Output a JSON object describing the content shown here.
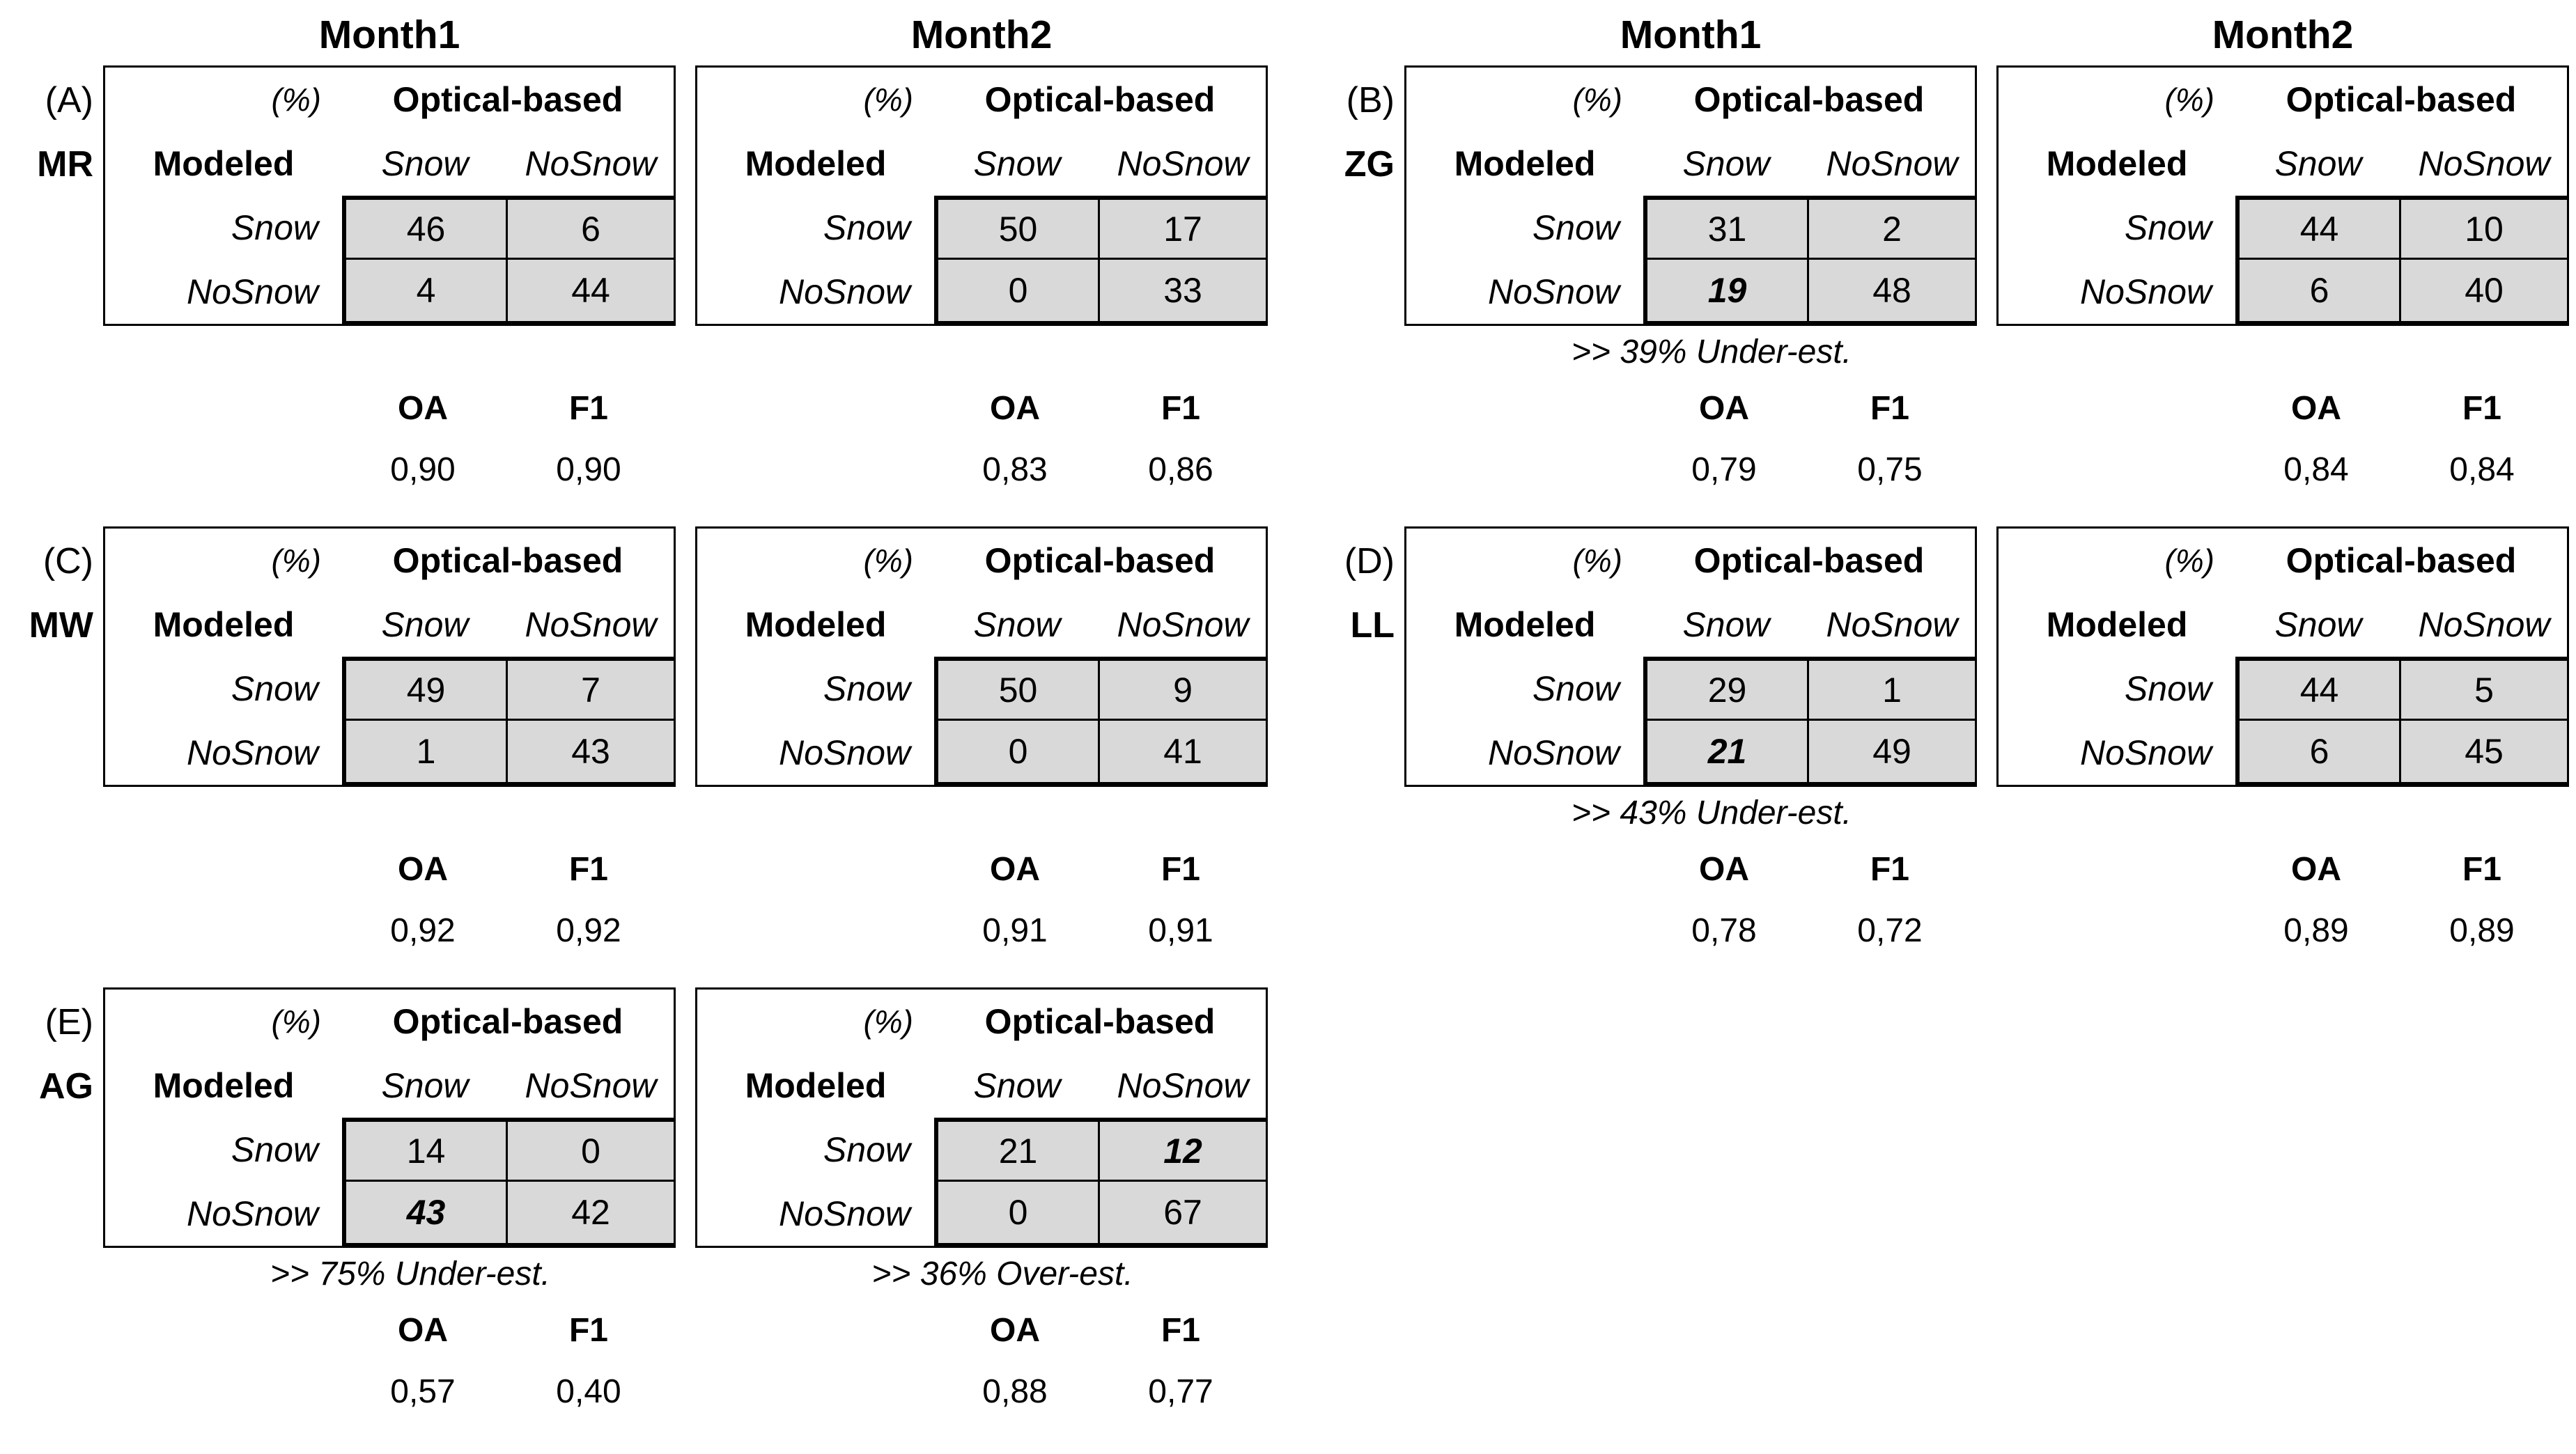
{
  "figure": {
    "column_headers": [
      "Month1",
      "Month2",
      "Month1",
      "Month2"
    ]
  },
  "table_labels": {
    "percent": "(%)",
    "optical": "Optical-based",
    "modeled": "Modeled",
    "snow": "Snow",
    "nosnow": "NoSnow",
    "oa": "OA",
    "f1": "F1"
  },
  "colors": {
    "cell_background": "#d9d9d9",
    "border": "#000000",
    "text": "#000000"
  },
  "panels": [
    {
      "letter": "(A)",
      "site": "MR",
      "months": [
        {
          "matrix": [
            [
              "46",
              "6"
            ],
            [
              "4",
              "44"
            ]
          ],
          "emph": null,
          "annotation": "",
          "oa": "0,90",
          "f1": "0,90"
        },
        {
          "matrix": [
            [
              "50",
              "17"
            ],
            [
              "0",
              "33"
            ]
          ],
          "emph": null,
          "annotation": "",
          "oa": "0,83",
          "f1": "0,86"
        }
      ]
    },
    {
      "letter": "(B)",
      "site": "ZG",
      "months": [
        {
          "matrix": [
            [
              "31",
              "2"
            ],
            [
              "19",
              "48"
            ]
          ],
          "emph": [
            1,
            0
          ],
          "annotation": ">> 39% Under-est.",
          "oa": "0,79",
          "f1": "0,75"
        },
        {
          "matrix": [
            [
              "44",
              "10"
            ],
            [
              "6",
              "40"
            ]
          ],
          "emph": null,
          "annotation": "",
          "oa": "0,84",
          "f1": "0,84"
        }
      ]
    },
    {
      "letter": "(C)",
      "site": "MW",
      "months": [
        {
          "matrix": [
            [
              "49",
              "7"
            ],
            [
              "1",
              "43"
            ]
          ],
          "emph": null,
          "annotation": "",
          "oa": "0,92",
          "f1": "0,92"
        },
        {
          "matrix": [
            [
              "50",
              "9"
            ],
            [
              "0",
              "41"
            ]
          ],
          "emph": null,
          "annotation": "",
          "oa": "0,91",
          "f1": "0,91"
        }
      ]
    },
    {
      "letter": "(D)",
      "site": "LL",
      "months": [
        {
          "matrix": [
            [
              "29",
              "1"
            ],
            [
              "21",
              "49"
            ]
          ],
          "emph": [
            1,
            0
          ],
          "annotation": ">> 43% Under-est.",
          "oa": "0,78",
          "f1": "0,72"
        },
        {
          "matrix": [
            [
              "44",
              "5"
            ],
            [
              "6",
              "45"
            ]
          ],
          "emph": null,
          "annotation": "",
          "oa": "0,89",
          "f1": "0,89"
        }
      ]
    },
    {
      "letter": "(E)",
      "site": "AG",
      "months": [
        {
          "matrix": [
            [
              "14",
              "0"
            ],
            [
              "43",
              "42"
            ]
          ],
          "emph": [
            1,
            0
          ],
          "annotation": ">> 75% Under-est.",
          "oa": "0,57",
          "f1": "0,40"
        },
        {
          "matrix": [
            [
              "21",
              "12"
            ],
            [
              "0",
              "67"
            ]
          ],
          "emph": [
            0,
            1
          ],
          "annotation": ">> 36% Over-est.",
          "oa": "0,88",
          "f1": "0,77"
        }
      ]
    }
  ]
}
